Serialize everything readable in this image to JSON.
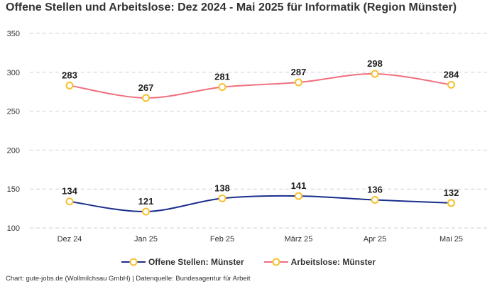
{
  "chart_data": {
    "type": "line",
    "title": "Offene Stellen und Arbeitslose: Dez 2024 - Mai 2025 für Informatik (Region Münster)",
    "categories": [
      "Dez 24",
      "Jan 25",
      "Feb 25",
      "März 25",
      "Apr 25",
      "Mai 25"
    ],
    "series": [
      {
        "name": "Offene Stellen: Münster",
        "values": [
          134,
          121,
          138,
          141,
          136,
          132
        ],
        "color": "#1a2e8c"
      },
      {
        "name": "Arbeitslose: Münster",
        "values": [
          283,
          267,
          281,
          287,
          298,
          284
        ],
        "color": "#f0707e"
      }
    ],
    "marker_color": "#f5c130",
    "ylim": [
      100,
      350
    ],
    "yticks": [
      100,
      150,
      200,
      250,
      300,
      350
    ],
    "grid": true,
    "legend": "bottom",
    "xlabel": "",
    "ylabel": ""
  },
  "footer": "Chart: gute-jobs.de (Wollmilchsau GmbH) | Datenquelle: Bundesagentur für Arbeit"
}
